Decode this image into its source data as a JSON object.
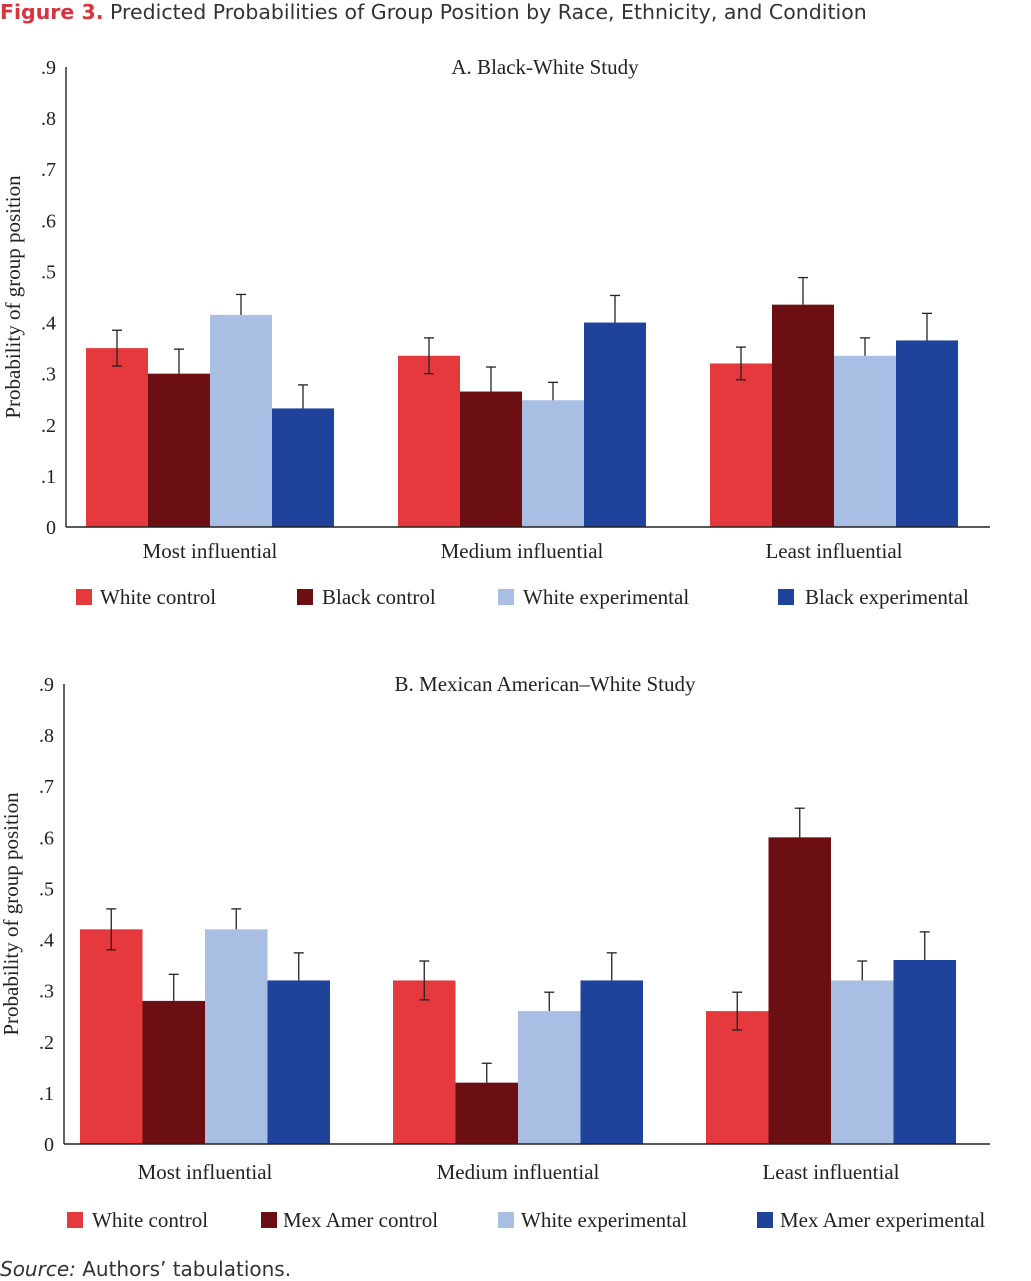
{
  "figure": {
    "label": "Figure 3.",
    "title": "Predicted Probabilities of Group Position by Race, Ethnicity, and Condition"
  },
  "source": {
    "label": "Source:",
    "text": "Authors’ tabulations."
  },
  "chart_data": [
    {
      "type": "bar",
      "title": "A. Black-White Study",
      "ylabel": "Probability of group position",
      "xlabel": "",
      "ylim": [
        0,
        0.9
      ],
      "yticks": [
        0,
        0.1,
        0.2,
        0.3,
        0.4,
        0.5,
        0.6,
        0.7,
        0.8,
        0.9
      ],
      "ytick_labels": [
        "0",
        ".1",
        ".2",
        ".3",
        ".4",
        ".5",
        ".6",
        ".7",
        ".8",
        ".9"
      ],
      "categories": [
        "Most influential",
        "Medium influential",
        "Least influential"
      ],
      "grid": false,
      "legend_position": "bottom",
      "series": [
        {
          "name": "White control",
          "color": "#e5393d",
          "values": [
            0.35,
            0.335,
            0.32
          ],
          "err_upper": [
            0.385,
            0.37,
            0.352
          ],
          "err_lower": [
            0.315,
            0.3,
            0.288
          ]
        },
        {
          "name": "Black control",
          "color": "#6b0f12",
          "values": [
            0.3,
            0.265,
            0.435
          ],
          "err_upper": [
            0.348,
            0.313,
            0.488
          ]
        },
        {
          "name": "White experimental",
          "color": "#a8bfe3",
          "values": [
            0.415,
            0.248,
            0.335
          ],
          "err_upper": [
            0.455,
            0.283,
            0.37
          ],
          "err_lower": [
            0.415,
            0.248,
            0.335
          ]
        },
        {
          "name": "Black experimental",
          "color": "#1f429a",
          "values": [
            0.232,
            0.4,
            0.365
          ],
          "err_upper": [
            0.278,
            0.453,
            0.418
          ]
        }
      ]
    },
    {
      "type": "bar",
      "title": "B. Mexican American–White Study",
      "ylabel": "Probability of group position",
      "xlabel": "",
      "ylim": [
        0,
        0.9
      ],
      "yticks": [
        0,
        0.1,
        0.2,
        0.3,
        0.4,
        0.5,
        0.6,
        0.7,
        0.8,
        0.9
      ],
      "ytick_labels": [
        "0",
        ".1",
        ".2",
        ".3",
        ".4",
        ".5",
        ".6",
        ".7",
        ".8",
        ".9"
      ],
      "categories": [
        "Most influential",
        "Medium influential",
        "Least influential"
      ],
      "grid": false,
      "legend_position": "bottom",
      "series": [
        {
          "name": "White control",
          "color": "#e5393d",
          "values": [
            0.42,
            0.32,
            0.26
          ],
          "err_upper": [
            0.46,
            0.358,
            0.297
          ],
          "err_lower": [
            0.38,
            0.282,
            0.223
          ]
        },
        {
          "name": "Mex Amer control",
          "color": "#6b0f12",
          "values": [
            0.28,
            0.12,
            0.6
          ],
          "err_upper": [
            0.332,
            0.158,
            0.657
          ]
        },
        {
          "name": "White experimental",
          "color": "#a8bfe3",
          "values": [
            0.42,
            0.26,
            0.32
          ],
          "err_upper": [
            0.46,
            0.297,
            0.358
          ],
          "err_lower": [
            0.42,
            0.26,
            0.32
          ]
        },
        {
          "name": "Mex Amer experimental",
          "color": "#1f429a",
          "values": [
            0.32,
            0.32,
            0.36
          ],
          "err_upper": [
            0.374,
            0.374,
            0.415
          ]
        }
      ]
    }
  ]
}
